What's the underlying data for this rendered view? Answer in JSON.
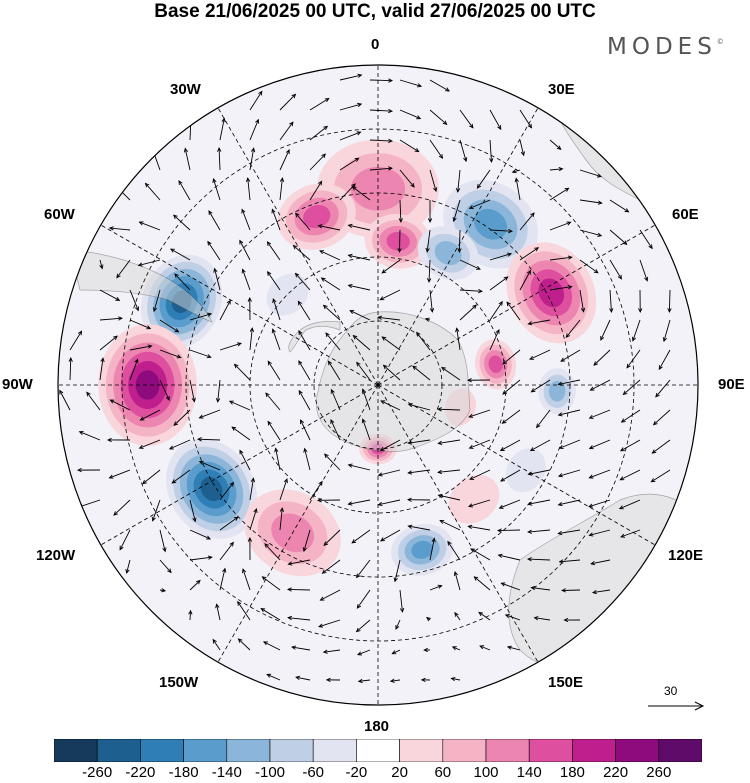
{
  "title": "Base 21/06/2025 00 UTC, valid 27/06/2025 00 UTC",
  "brand": "MODES",
  "brand_mark": "©",
  "longitude_labels": {
    "lon_0": "0",
    "lon_30e": "30E",
    "lon_60e": "60E",
    "lon_90e": "90E",
    "lon_120e": "120E",
    "lon_150e": "150E",
    "lon_180": "180",
    "lon_150w": "150W",
    "lon_120w": "120W",
    "lon_90w": "90W",
    "lon_60w": "60W",
    "lon_30w": "30W"
  },
  "reference_vector": {
    "value": "30"
  },
  "colorbar": {
    "labels": [
      "-260",
      "-220",
      "-180",
      "-140",
      "-100",
      "-60",
      "-20",
      "20",
      "60",
      "100",
      "140",
      "180",
      "220",
      "260"
    ],
    "colors": [
      "#153a5c",
      "#1d5f8f",
      "#2f7fb6",
      "#5a9ccb",
      "#8cb6d9",
      "#bfcfe6",
      "#e3e4f1",
      "#ffffff",
      "#f8d6dc",
      "#f5b3c6",
      "#ec85b0",
      "#de4f9f",
      "#be1f8c",
      "#8d0b7c",
      "#5e0b6a"
    ]
  },
  "colors": {
    "land": "#d9d9d9",
    "frame": "#000000"
  },
  "anomalies": [
    {
      "lon": 0,
      "lat": -44,
      "r": 58,
      "level": 3
    },
    {
      "lon": -20,
      "lat": -48,
      "r": 38,
      "level": 4
    },
    {
      "lon": 8,
      "lat": -56,
      "r": 32,
      "level": 4
    },
    {
      "lon": 35,
      "lat": -44,
      "r": 48,
      "level": -4
    },
    {
      "lon": 28,
      "lat": -55,
      "r": 30,
      "level": -3
    },
    {
      "lon": 62,
      "lat": -44,
      "r": 50,
      "level": 5
    },
    {
      "lon": 80,
      "lat": -62,
      "r": 24,
      "level": 4
    },
    {
      "lon": 92,
      "lat": -48,
      "r": 22,
      "level": -3
    },
    {
      "lon": -67,
      "lat": -40,
      "r": 46,
      "level": -6
    },
    {
      "lon": -90,
      "lat": -36,
      "r": 58,
      "level": 6
    },
    {
      "lon": -122,
      "lat": -44,
      "r": 50,
      "level": -6
    },
    {
      "lon": -150,
      "lat": -50,
      "r": 48,
      "level": 3
    },
    {
      "lon": 165,
      "lat": -50,
      "r": 30,
      "level": -4
    },
    {
      "lon": 180,
      "lat": -75,
      "r": 18,
      "level": 4
    },
    {
      "lon": 140,
      "lat": -55,
      "r": 26,
      "level": 1
    },
    {
      "lon": 120,
      "lat": -50,
      "r": 22,
      "level": -1
    },
    {
      "lon": -45,
      "lat": -60,
      "r": 22,
      "level": -1
    },
    {
      "lon": 105,
      "lat": -70,
      "r": 18,
      "level": 1
    }
  ]
}
